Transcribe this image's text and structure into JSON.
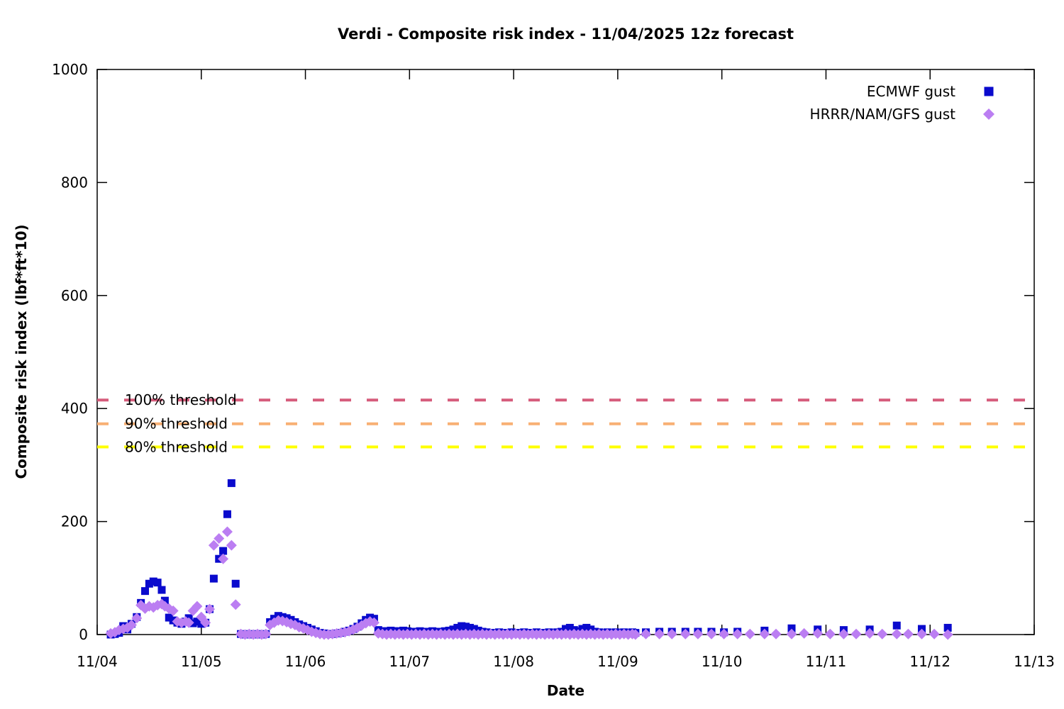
{
  "title": "Verdi - Composite risk index - 11/04/2025 12z forecast",
  "axes": {
    "x": {
      "label": "Date",
      "tick_labels": [
        "11/04",
        "11/05",
        "11/06",
        "11/07",
        "11/08",
        "11/09",
        "11/10",
        "11/11",
        "11/12",
        "11/13"
      ]
    },
    "y": {
      "label": "Composite risk index (lbf*ft*10)",
      "tick_values": [
        0,
        200,
        400,
        600,
        800,
        1000
      ],
      "range": [
        0,
        1000
      ]
    }
  },
  "legend": {
    "position": "top-right",
    "entries": [
      {
        "label": "ECMWF gust",
        "marker": "square",
        "color": "#0a0acd"
      },
      {
        "label": "HRRR/NAM/GFS gust",
        "marker": "diamond",
        "color": "#bb7ef2"
      }
    ]
  },
  "thresholds": [
    {
      "label": "100% threshold",
      "value": 415,
      "color": "#d65c7b"
    },
    {
      "label": "90% threshold",
      "value": 373,
      "color": "#f8b074"
    },
    {
      "label": "80% threshold",
      "value": 332,
      "color": "#ffff00"
    }
  ],
  "chart_data": {
    "type": "scatter",
    "title": "Verdi - Composite risk index - 11/04/2025 12z forecast",
    "xlabel": "Date",
    "ylabel": "Composite risk index (lbf*ft*10)",
    "x_unit": "days since 11/04 00:00 (axis spans 11/04 through 11/13)",
    "xlim": [
      0,
      9
    ],
    "ylim": [
      0,
      1000
    ],
    "grid": false,
    "legend_position": "top-right inside",
    "series": [
      {
        "name": "ECMWF gust",
        "marker": "square",
        "color": "#0a0acd",
        "points": [
          [
            0.13,
            0
          ],
          [
            0.17,
            1
          ],
          [
            0.21,
            3
          ],
          [
            0.25,
            15
          ],
          [
            0.29,
            9
          ],
          [
            0.33,
            19
          ],
          [
            0.38,
            31
          ],
          [
            0.42,
            56
          ],
          [
            0.46,
            77
          ],
          [
            0.5,
            90
          ],
          [
            0.54,
            94
          ],
          [
            0.58,
            92
          ],
          [
            0.62,
            79
          ],
          [
            0.65,
            60
          ],
          [
            0.69,
            30
          ],
          [
            0.73,
            25
          ],
          [
            0.77,
            21
          ],
          [
            0.81,
            19
          ],
          [
            0.85,
            23
          ],
          [
            0.88,
            29
          ],
          [
            0.92,
            20
          ],
          [
            0.96,
            23
          ],
          [
            1.0,
            19
          ],
          [
            1.04,
            21
          ],
          [
            1.08,
            45
          ],
          [
            1.12,
            99
          ],
          [
            1.17,
            134
          ],
          [
            1.21,
            148
          ],
          [
            1.25,
            213
          ],
          [
            1.29,
            268
          ],
          [
            1.33,
            90
          ],
          [
            1.38,
            1
          ],
          [
            1.42,
            0
          ],
          [
            1.46,
            1
          ],
          [
            1.5,
            0
          ],
          [
            1.54,
            1
          ],
          [
            1.58,
            0
          ],
          [
            1.62,
            1
          ],
          [
            1.66,
            22
          ],
          [
            1.7,
            28
          ],
          [
            1.74,
            33
          ],
          [
            1.78,
            31
          ],
          [
            1.82,
            29
          ],
          [
            1.86,
            26
          ],
          [
            1.9,
            22
          ],
          [
            1.94,
            18
          ],
          [
            1.98,
            15
          ],
          [
            2.02,
            12
          ],
          [
            2.06,
            9
          ],
          [
            2.1,
            6
          ],
          [
            2.14,
            3
          ],
          [
            2.18,
            2
          ],
          [
            2.22,
            1
          ],
          [
            2.26,
            1
          ],
          [
            2.3,
            2
          ],
          [
            2.34,
            3
          ],
          [
            2.38,
            5
          ],
          [
            2.42,
            7
          ],
          [
            2.46,
            10
          ],
          [
            2.5,
            14
          ],
          [
            2.54,
            20
          ],
          [
            2.58,
            26
          ],
          [
            2.62,
            30
          ],
          [
            2.66,
            28
          ],
          [
            2.7,
            8
          ],
          [
            2.74,
            6
          ],
          [
            2.78,
            6
          ],
          [
            2.82,
            7
          ],
          [
            2.86,
            6
          ],
          [
            2.9,
            6
          ],
          [
            2.94,
            7
          ],
          [
            2.98,
            6
          ],
          [
            3.02,
            5
          ],
          [
            3.06,
            5
          ],
          [
            3.1,
            6
          ],
          [
            3.14,
            5
          ],
          [
            3.18,
            5
          ],
          [
            3.22,
            6
          ],
          [
            3.26,
            5
          ],
          [
            3.3,
            5
          ],
          [
            3.34,
            6
          ],
          [
            3.38,
            7
          ],
          [
            3.42,
            9
          ],
          [
            3.46,
            12
          ],
          [
            3.5,
            15
          ],
          [
            3.54,
            14
          ],
          [
            3.58,
            12
          ],
          [
            3.62,
            10
          ],
          [
            3.66,
            7
          ],
          [
            3.7,
            5
          ],
          [
            3.74,
            4
          ],
          [
            3.78,
            3
          ],
          [
            3.82,
            3
          ],
          [
            3.86,
            4
          ],
          [
            3.9,
            3
          ],
          [
            3.94,
            3
          ],
          [
            3.98,
            4
          ],
          [
            4.02,
            3
          ],
          [
            4.06,
            3
          ],
          [
            4.1,
            4
          ],
          [
            4.14,
            3
          ],
          [
            4.18,
            3
          ],
          [
            4.22,
            4
          ],
          [
            4.26,
            3
          ],
          [
            4.3,
            3
          ],
          [
            4.34,
            4
          ],
          [
            4.38,
            3
          ],
          [
            4.42,
            4
          ],
          [
            4.46,
            5
          ],
          [
            4.5,
            10
          ],
          [
            4.54,
            12
          ],
          [
            4.58,
            8
          ],
          [
            4.62,
            6
          ],
          [
            4.66,
            10
          ],
          [
            4.7,
            12
          ],
          [
            4.74,
            9
          ],
          [
            4.78,
            5
          ],
          [
            4.82,
            4
          ],
          [
            4.86,
            3
          ],
          [
            4.9,
            4
          ],
          [
            4.94,
            3
          ],
          [
            4.98,
            4
          ],
          [
            5.02,
            3
          ],
          [
            5.06,
            4
          ],
          [
            5.1,
            3
          ],
          [
            5.14,
            4
          ],
          [
            5.17,
            3
          ],
          [
            5.27,
            4
          ],
          [
            5.4,
            5
          ],
          [
            5.52,
            5
          ],
          [
            5.65,
            5
          ],
          [
            5.77,
            5
          ],
          [
            5.9,
            5
          ],
          [
            6.02,
            4
          ],
          [
            6.15,
            5
          ],
          [
            6.41,
            7
          ],
          [
            6.67,
            11
          ],
          [
            6.92,
            9
          ],
          [
            7.17,
            8
          ],
          [
            7.42,
            9
          ],
          [
            7.68,
            16
          ],
          [
            7.92,
            10
          ],
          [
            8.17,
            12
          ]
        ]
      },
      {
        "name": "HRRR/NAM/GFS gust",
        "marker": "diamond",
        "color": "#bb7ef2",
        "points": [
          [
            0.13,
            2
          ],
          [
            0.17,
            4
          ],
          [
            0.21,
            8
          ],
          [
            0.25,
            10
          ],
          [
            0.29,
            12
          ],
          [
            0.33,
            17
          ],
          [
            0.38,
            29
          ],
          [
            0.42,
            52
          ],
          [
            0.46,
            46
          ],
          [
            0.5,
            50
          ],
          [
            0.54,
            48
          ],
          [
            0.58,
            52
          ],
          [
            0.62,
            54
          ],
          [
            0.65,
            50
          ],
          [
            0.69,
            46
          ],
          [
            0.73,
            42
          ],
          [
            0.77,
            23
          ],
          [
            0.81,
            21
          ],
          [
            0.85,
            23
          ],
          [
            0.88,
            21
          ],
          [
            0.92,
            42
          ],
          [
            0.96,
            50
          ],
          [
            1.0,
            31
          ],
          [
            1.04,
            21
          ],
          [
            1.08,
            45
          ],
          [
            1.12,
            158
          ],
          [
            1.17,
            170
          ],
          [
            1.21,
            134
          ],
          [
            1.25,
            182
          ],
          [
            1.29,
            158
          ],
          [
            1.33,
            53
          ],
          [
            1.38,
            1
          ],
          [
            1.42,
            0
          ],
          [
            1.46,
            1
          ],
          [
            1.5,
            0
          ],
          [
            1.54,
            1
          ],
          [
            1.58,
            0
          ],
          [
            1.62,
            1
          ],
          [
            1.66,
            17
          ],
          [
            1.7,
            21
          ],
          [
            1.74,
            25
          ],
          [
            1.78,
            24
          ],
          [
            1.82,
            22
          ],
          [
            1.86,
            19
          ],
          [
            1.9,
            17
          ],
          [
            1.94,
            13
          ],
          [
            1.98,
            11
          ],
          [
            2.02,
            8
          ],
          [
            2.06,
            5
          ],
          [
            2.1,
            3
          ],
          [
            2.14,
            1
          ],
          [
            2.18,
            0
          ],
          [
            2.22,
            0
          ],
          [
            2.26,
            1
          ],
          [
            2.3,
            2
          ],
          [
            2.34,
            3
          ],
          [
            2.38,
            4
          ],
          [
            2.42,
            6
          ],
          [
            2.46,
            9
          ],
          [
            2.5,
            12
          ],
          [
            2.54,
            16
          ],
          [
            2.58,
            20
          ],
          [
            2.62,
            23
          ],
          [
            2.66,
            21
          ],
          [
            2.7,
            2
          ],
          [
            2.74,
            1
          ],
          [
            2.78,
            0
          ],
          [
            2.82,
            1
          ],
          [
            2.86,
            0
          ],
          [
            2.9,
            1
          ],
          [
            2.94,
            0
          ],
          [
            2.98,
            1
          ],
          [
            3.02,
            0
          ],
          [
            3.06,
            1
          ],
          [
            3.1,
            0
          ],
          [
            3.14,
            1
          ],
          [
            3.18,
            0
          ],
          [
            3.22,
            1
          ],
          [
            3.26,
            0
          ],
          [
            3.3,
            1
          ],
          [
            3.34,
            0
          ],
          [
            3.38,
            1
          ],
          [
            3.42,
            0
          ],
          [
            3.46,
            1
          ],
          [
            3.5,
            0
          ],
          [
            3.54,
            1
          ],
          [
            3.58,
            0
          ],
          [
            3.62,
            1
          ],
          [
            3.66,
            0
          ],
          [
            3.7,
            1
          ],
          [
            3.74,
            0
          ],
          [
            3.78,
            1
          ],
          [
            3.82,
            0
          ],
          [
            3.86,
            1
          ],
          [
            3.9,
            0
          ],
          [
            3.94,
            1
          ],
          [
            3.98,
            0
          ],
          [
            4.02,
            1
          ],
          [
            4.06,
            0
          ],
          [
            4.1,
            1
          ],
          [
            4.14,
            0
          ],
          [
            4.18,
            1
          ],
          [
            4.22,
            0
          ],
          [
            4.26,
            1
          ],
          [
            4.3,
            0
          ],
          [
            4.34,
            1
          ],
          [
            4.38,
            0
          ],
          [
            4.42,
            1
          ],
          [
            4.46,
            0
          ],
          [
            4.5,
            1
          ],
          [
            4.54,
            0
          ],
          [
            4.58,
            1
          ],
          [
            4.62,
            0
          ],
          [
            4.66,
            1
          ],
          [
            4.7,
            0
          ],
          [
            4.74,
            1
          ],
          [
            4.78,
            0
          ],
          [
            4.82,
            1
          ],
          [
            4.86,
            0
          ],
          [
            4.9,
            1
          ],
          [
            4.94,
            0
          ],
          [
            4.98,
            1
          ],
          [
            5.02,
            0
          ],
          [
            5.06,
            1
          ],
          [
            5.1,
            0
          ],
          [
            5.14,
            1
          ],
          [
            5.17,
            0
          ],
          [
            5.27,
            1
          ],
          [
            5.4,
            1
          ],
          [
            5.52,
            1
          ],
          [
            5.65,
            1
          ],
          [
            5.77,
            1
          ],
          [
            5.9,
            1
          ],
          [
            6.02,
            1
          ],
          [
            6.15,
            1
          ],
          [
            6.27,
            1
          ],
          [
            6.41,
            1
          ],
          [
            6.52,
            1
          ],
          [
            6.67,
            1
          ],
          [
            6.79,
            2
          ],
          [
            6.92,
            2
          ],
          [
            7.04,
            1
          ],
          [
            7.17,
            1
          ],
          [
            7.29,
            1
          ],
          [
            7.42,
            2
          ],
          [
            7.54,
            1
          ],
          [
            7.68,
            1
          ],
          [
            7.79,
            1
          ],
          [
            7.92,
            1
          ],
          [
            8.04,
            1
          ],
          [
            8.17,
            0
          ]
        ]
      }
    ],
    "annotations": [
      {
        "text": "100% threshold",
        "y": 415,
        "line": "dashed"
      },
      {
        "text": "90% threshold",
        "y": 373,
        "line": "dashed"
      },
      {
        "text": "80% threshold",
        "y": 332,
        "line": "dashed"
      }
    ]
  }
}
